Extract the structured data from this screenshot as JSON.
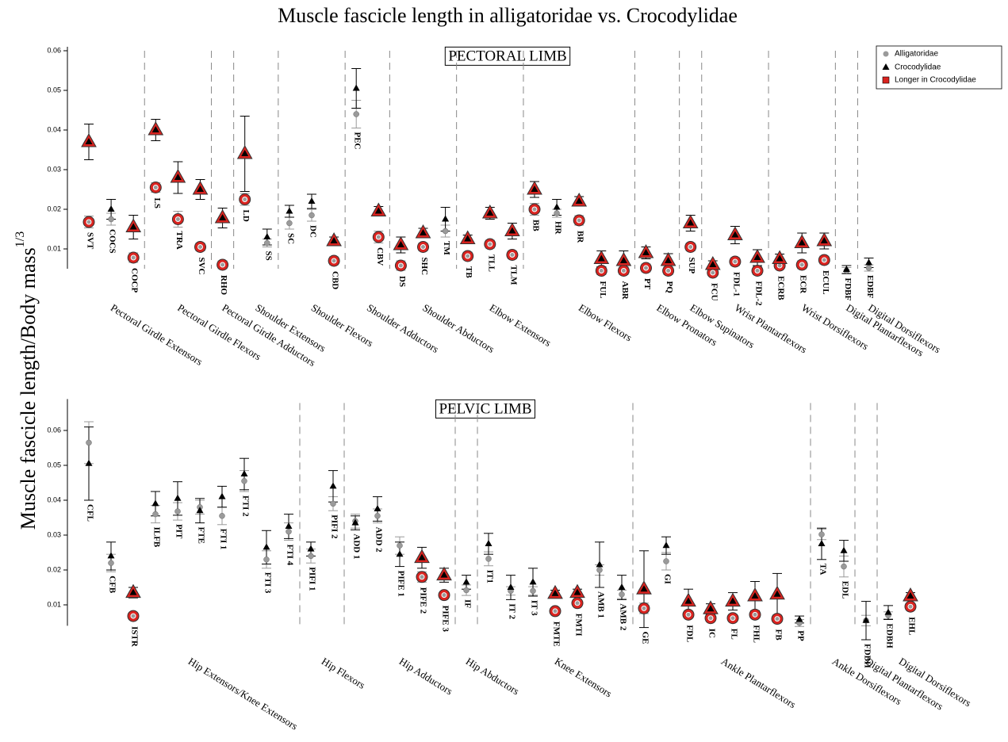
{
  "chart_data": [
    {
      "type": "errorbar",
      "title": "Muscle fascicle length in alligatoridae vs. Crocodylidae",
      "y_label": "Muscle fascicle length/Body mass",
      "y_label_superscript": "1/3",
      "panel_title": "PECTORAL LIMB",
      "legend": "upper right",
      "ylim": [
        0.005,
        0.061
      ],
      "yticks": [
        0.01,
        0.02,
        0.03,
        0.04,
        0.05,
        0.06
      ],
      "groups": [
        {
          "name": "Pectoral Girdle Extensors",
          "categories": [
            "SVT",
            "COCS",
            "COCP"
          ]
        },
        {
          "name": "Pectoral Girdle Flexors",
          "categories": [
            "LS",
            "TRA",
            "SVC"
          ]
        },
        {
          "name": "Pectoral Girdle Adductors",
          "categories": [
            "RHO"
          ]
        },
        {
          "name": "Shoulder Extensors",
          "categories": [
            "LD",
            "SS"
          ]
        },
        {
          "name": "Shoulder Flexors",
          "categories": [
            "SC",
            "DC",
            "CBD"
          ]
        },
        {
          "name": "Shoulder Adductors",
          "categories": [
            "PEC",
            "CBV"
          ]
        },
        {
          "name": "Shoulder Abductors",
          "categories": [
            "DS",
            "SHC",
            "TM"
          ]
        },
        {
          "name": "Elbow Extensors",
          "categories": [
            "TB",
            "TLL",
            "TLM"
          ]
        },
        {
          "name": "Elbow Flexors",
          "categories": [
            "BB",
            "HR",
            "BR",
            "FUL",
            "ABR"
          ]
        },
        {
          "name": "Elbow Pronators",
          "categories": [
            "PT",
            "PQ"
          ]
        },
        {
          "name": "Elbow Supinators",
          "categories": [
            "SUP"
          ]
        },
        {
          "name": "Wrist Plantarflexors",
          "categories": [
            "FCU",
            "FDL-1",
            "FDL-2"
          ]
        },
        {
          "name": "Wrist Dorsiflexors",
          "categories": [
            "ECRB",
            "ECR",
            "ECUL"
          ]
        },
        {
          "name": "Digital Plantarflexors",
          "categories": [
            "FDBF"
          ]
        },
        {
          "name": "Digital Dorsiflexors",
          "categories": [
            "EDBF"
          ]
        }
      ],
      "series": [
        {
          "name": "Alligatoridae",
          "color": "#9a9a9a",
          "marker": "circle",
          "values": [
            0.0168,
            0.0175,
            0.0078,
            0.0255,
            0.0175,
            0.0105,
            0.006,
            0.0225,
            0.0115,
            0.0165,
            0.0185,
            0.007,
            0.044,
            0.013,
            0.0058,
            0.0105,
            0.0145,
            0.0082,
            0.0112,
            0.0085,
            0.02,
            0.019,
            0.0172,
            0.0045,
            0.0045,
            0.0052,
            0.0045,
            0.0105,
            0.004,
            0.0068,
            0.0045,
            0.0058,
            0.006,
            0.0072,
            0.0045,
            0.0052
          ],
          "errors": [
            0.0015,
            0.0015,
            0.0012,
            0.0012,
            0.002,
            0.001,
            0.001,
            0.0015,
            0.001,
            0.0015,
            0.0015,
            0.001,
            0.0035,
            0.0015,
            0.0012,
            0.001,
            0.0015,
            0.001,
            0.001,
            0.001,
            0.0015,
            0.001,
            0.0012,
            0.001,
            0.001,
            0.001,
            0.001,
            0.001,
            0.0008,
            0.001,
            0.001,
            0.0008,
            0.001,
            0.001,
            0.0008,
            0.0008
          ]
        },
        {
          "name": "Crocodylidae",
          "color": "#000000",
          "marker": "triangle",
          "values": [
            0.037,
            0.02,
            0.0155,
            0.04,
            0.028,
            0.025,
            0.0178,
            0.034,
            0.013,
            0.0195,
            0.022,
            0.012,
            0.0505,
            0.0195,
            0.011,
            0.014,
            0.0175,
            0.0125,
            0.019,
            0.0145,
            0.025,
            0.0205,
            0.022,
            0.0075,
            0.007,
            0.009,
            0.007,
            0.0165,
            0.006,
            0.0135,
            0.0078,
            0.0075,
            0.0115,
            0.012,
            0.0048,
            0.0065
          ],
          "errors": [
            0.0045,
            0.0025,
            0.003,
            0.0027,
            0.004,
            0.0025,
            0.0025,
            0.0095,
            0.002,
            0.0015,
            0.0018,
            0.001,
            0.005,
            0.0012,
            0.002,
            0.0012,
            0.003,
            0.001,
            0.0015,
            0.002,
            0.002,
            0.002,
            0.0012,
            0.002,
            0.0025,
            0.0015,
            0.0018,
            0.002,
            0.001,
            0.0022,
            0.002,
            0.0012,
            0.0025,
            0.002,
            0.001,
            0.0012
          ]
        }
      ],
      "highlight": {
        "name": "Longer in Crocodylidae",
        "color": "#d9231f",
        "values": [
          true,
          false,
          true,
          true,
          true,
          true,
          true,
          true,
          false,
          false,
          false,
          true,
          false,
          true,
          true,
          true,
          false,
          true,
          true,
          true,
          true,
          false,
          true,
          true,
          true,
          true,
          true,
          true,
          true,
          true,
          true,
          true,
          true,
          true,
          false,
          false
        ]
      }
    },
    {
      "type": "errorbar",
      "panel_title": "PELVIC LIMB",
      "ylim": [
        0.004,
        0.069
      ],
      "yticks": [
        0.01,
        0.02,
        0.03,
        0.04,
        0.05,
        0.06
      ],
      "groups": [
        {
          "name": "Hip Extensors/Knee Extensors",
          "categories": [
            "CFL",
            "CFB",
            "ISTR",
            "ILFB",
            "PIT",
            "FTE",
            "FTI 1",
            "FTI 2",
            "FTI 3",
            "FTI 4"
          ]
        },
        {
          "name": "Hip Flexors",
          "categories": [
            "PIFI 1",
            "PIFI 2"
          ]
        },
        {
          "name": "Hip Adductors",
          "categories": [
            "ADD 1",
            "ADD 2",
            "PIFE 1",
            "PIFE 2",
            "PIFE 3"
          ]
        },
        {
          "name": "Hip Abductors",
          "categories": [
            "IF"
          ]
        },
        {
          "name": "Knee Extensors",
          "categories": [
            "IT1",
            "IT 2",
            "IT 3",
            "FMTE",
            "FMTI",
            "AMB 1",
            "AMB 2"
          ]
        },
        {
          "name": "Ankle Plantarflexors",
          "categories": [
            "GE",
            "GI",
            "FDL",
            "IC",
            "FL",
            "FHL",
            "FB",
            "PP"
          ]
        },
        {
          "name": "Ankle Dorsiflexors",
          "categories": [
            "TA",
            "EDL"
          ]
        },
        {
          "name": "Digital Plantarflexors",
          "categories": [
            "FDBH"
          ]
        },
        {
          "name": "Digital Dorsiflexors",
          "categories": [
            "EDBH",
            "EHL"
          ]
        }
      ],
      "series": [
        {
          "name": "Alligatoridae",
          "color": "#9a9a9a",
          "marker": "circle",
          "values": [
            0.0565,
            0.022,
            0.0068,
            0.036,
            0.0368,
            0.038,
            0.0355,
            0.0455,
            0.023,
            0.031,
            0.024,
            0.039,
            0.034,
            0.0355,
            0.027,
            0.018,
            0.0128,
            0.0142,
            0.0232,
            0.014,
            0.014,
            0.0082,
            0.0105,
            0.02,
            0.013,
            0.009,
            0.0225,
            0.0072,
            0.0062,
            0.0062,
            0.0072,
            0.006,
            0.0048,
            0.0302,
            0.021,
            0.0055,
            0.007,
            0.0095
          ],
          "errors": [
            0.006,
            0.0025,
            0.0008,
            0.0025,
            0.0025,
            0.002,
            0.0025,
            0.003,
            0.0025,
            0.0025,
            0.002,
            0.002,
            0.002,
            0.002,
            0.0025,
            0.0015,
            0.001,
            0.0015,
            0.002,
            0.0012,
            0.0012,
            0.0008,
            0.001,
            0.0015,
            0.0012,
            0.0015,
            0.0025,
            0.001,
            0.001,
            0.001,
            0.001,
            0.001,
            0.001,
            0.0015,
            0.003,
            0.0015,
            0.001,
            0.001
          ]
        },
        {
          "name": "Crocodylidae",
          "color": "#000000",
          "marker": "triangle",
          "values": [
            0.0505,
            0.024,
            0.0135,
            0.039,
            0.0405,
            0.037,
            0.041,
            0.0475,
            0.0265,
            0.0325,
            0.026,
            0.044,
            0.0335,
            0.0375,
            0.0245,
            0.0235,
            0.0185,
            0.0165,
            0.0275,
            0.015,
            0.0165,
            0.0132,
            0.0135,
            0.0215,
            0.015,
            0.0145,
            0.027,
            0.011,
            0.0088,
            0.011,
            0.0125,
            0.013,
            0.0058,
            0.0275,
            0.0255,
            0.0055,
            0.0078,
            0.0125
          ],
          "errors": [
            0.0105,
            0.004,
            0.0015,
            0.0035,
            0.0048,
            0.0035,
            0.003,
            0.0045,
            0.0048,
            0.0035,
            0.002,
            0.0045,
            0.002,
            0.0035,
            0.0035,
            0.003,
            0.002,
            0.002,
            0.003,
            0.0035,
            0.004,
            0.001,
            0.001,
            0.0065,
            0.0035,
            0.011,
            0.0025,
            0.0035,
            0.0015,
            0.0025,
            0.0042,
            0.006,
            0.001,
            0.0045,
            0.003,
            0.0055,
            0.002,
            0.001
          ]
        }
      ],
      "highlight": {
        "name": "Longer in Crocodylidae",
        "color": "#d9231f",
        "values": [
          false,
          false,
          true,
          false,
          false,
          false,
          false,
          false,
          false,
          false,
          false,
          false,
          false,
          false,
          false,
          true,
          true,
          false,
          false,
          false,
          false,
          true,
          true,
          false,
          false,
          true,
          false,
          true,
          true,
          true,
          true,
          true,
          false,
          false,
          false,
          false,
          false,
          true
        ]
      }
    }
  ]
}
